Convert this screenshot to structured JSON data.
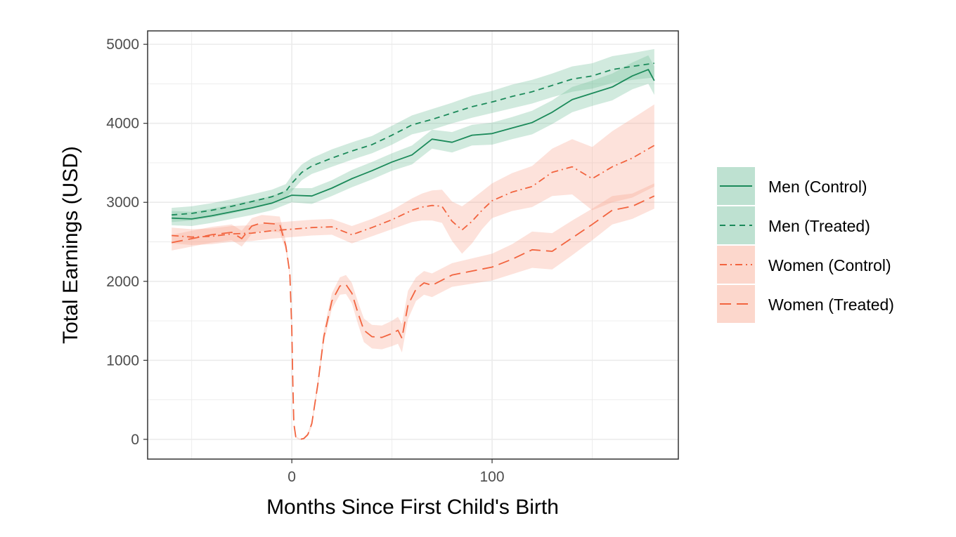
{
  "chart_data": {
    "type": "line",
    "xlabel": "Months Since First Child's Birth",
    "ylabel": "Total Earnings (USD)",
    "xlim": [
      -72,
      193
    ],
    "ylim": [
      -250,
      5170
    ],
    "x_ticks": [
      0,
      100
    ],
    "y_ticks": [
      0,
      1000,
      2000,
      3000,
      4000,
      5000
    ],
    "grid": true,
    "legend_position": "right",
    "series": [
      {
        "name": "Men (Control)",
        "color": "#1b8a5a",
        "band_color": "#6fbd98",
        "dash": "solid",
        "x": [
          -60,
          -50,
          -40,
          -30,
          -20,
          -10,
          0,
          10,
          20,
          30,
          40,
          50,
          60,
          70,
          80,
          90,
          100,
          110,
          120,
          130,
          140,
          150,
          160,
          170,
          178,
          181
        ],
        "y": [
          2800,
          2790,
          2830,
          2880,
          2930,
          2990,
          3090,
          3080,
          3180,
          3300,
          3400,
          3510,
          3600,
          3800,
          3760,
          3850,
          3870,
          3940,
          4010,
          4140,
          4300,
          4380,
          4460,
          4600,
          4680,
          4540
        ],
        "band": [
          90,
          90,
          90,
          90,
          90,
          90,
          90,
          100,
          100,
          110,
          110,
          110,
          120,
          120,
          130,
          130,
          140,
          140,
          150,
          150,
          160,
          160,
          170,
          170,
          180,
          180
        ]
      },
      {
        "name": "Men (Treated)",
        "color": "#1b8a5a",
        "band_color": "#6fbd98",
        "dash": "8,6",
        "x": [
          -60,
          -50,
          -40,
          -30,
          -20,
          -10,
          -3,
          0,
          5,
          10,
          20,
          30,
          40,
          50,
          60,
          70,
          80,
          90,
          100,
          110,
          120,
          130,
          140,
          150,
          160,
          170,
          181
        ],
        "y": [
          2840,
          2860,
          2900,
          2950,
          3010,
          3070,
          3140,
          3240,
          3380,
          3460,
          3560,
          3650,
          3730,
          3850,
          3980,
          4050,
          4130,
          4210,
          4270,
          4340,
          4400,
          4480,
          4560,
          4600,
          4680,
          4720,
          4760
        ],
        "band": [
          90,
          90,
          90,
          90,
          90,
          90,
          90,
          100,
          100,
          100,
          110,
          110,
          110,
          120,
          120,
          130,
          130,
          140,
          140,
          150,
          150,
          150,
          160,
          160,
          170,
          170,
          180
        ]
      },
      {
        "name": "Women (Control)",
        "color": "#f2643f",
        "band_color": "#f9a68e",
        "dash": "10,5,2,5",
        "x": [
          -60,
          -50,
          -40,
          -30,
          -20,
          -10,
          0,
          10,
          20,
          30,
          40,
          50,
          60,
          65,
          70,
          75,
          80,
          85,
          90,
          95,
          100,
          110,
          120,
          130,
          140,
          150,
          160,
          170,
          181
        ],
        "y": [
          2580,
          2560,
          2570,
          2600,
          2610,
          2640,
          2660,
          2680,
          2690,
          2590,
          2680,
          2780,
          2900,
          2940,
          2960,
          2950,
          2760,
          2650,
          2760,
          2900,
          3020,
          3130,
          3200,
          3380,
          3450,
          3300,
          3450,
          3560,
          3720
        ],
        "band": [
          100,
          100,
          100,
          100,
          100,
          100,
          100,
          100,
          100,
          110,
          110,
          120,
          150,
          170,
          190,
          210,
          250,
          300,
          280,
          240,
          220,
          240,
          260,
          300,
          350,
          400,
          450,
          500,
          520
        ]
      },
      {
        "name": "Women (Treated)",
        "color": "#f2643f",
        "band_color": "#f9a68e",
        "dash": "16,8",
        "x": [
          -60,
          -50,
          -40,
          -30,
          -25,
          -20,
          -15,
          -10,
          -6,
          -3,
          -1,
          0,
          0.5,
          1,
          2,
          4,
          6,
          8,
          10,
          13,
          16,
          20,
          24,
          27,
          30,
          33,
          36,
          40,
          45,
          50,
          53,
          55,
          58,
          62,
          66,
          70,
          80,
          90,
          100,
          110,
          120,
          130,
          140,
          150,
          160,
          170,
          181
        ],
        "y": [
          2490,
          2540,
          2590,
          2620,
          2540,
          2700,
          2740,
          2730,
          2720,
          2450,
          2100,
          1400,
          700,
          200,
          30,
          0,
          10,
          60,
          200,
          700,
          1300,
          1750,
          1940,
          1960,
          1850,
          1600,
          1380,
          1300,
          1290,
          1340,
          1380,
          1280,
          1700,
          1900,
          1980,
          1950,
          2080,
          2130,
          2180,
          2280,
          2400,
          2380,
          2550,
          2720,
          2900,
          2950,
          3080
        ],
        "band": [
          100,
          100,
          100,
          100,
          100,
          100,
          100,
          100,
          100,
          60,
          40,
          30,
          20,
          10,
          10,
          10,
          10,
          20,
          40,
          60,
          80,
          100,
          110,
          120,
          130,
          140,
          150,
          150,
          150,
          160,
          170,
          180,
          180,
          150,
          150,
          150,
          150,
          160,
          170,
          190,
          230,
          230,
          220,
          200,
          180,
          160,
          160
        ]
      }
    ]
  }
}
